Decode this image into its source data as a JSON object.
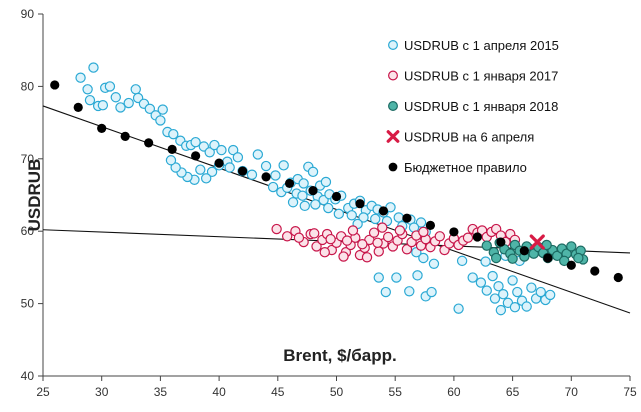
{
  "chart_data": {
    "type": "scatter",
    "xlabel": "Brent, $/барр.",
    "ylabel": "USDRUB",
    "xlim": [
      25,
      75
    ],
    "ylim": [
      40,
      90
    ],
    "x_ticks": [
      25,
      30,
      35,
      40,
      45,
      50,
      55,
      60,
      65,
      70,
      75
    ],
    "y_ticks": [
      40,
      50,
      60,
      70,
      80,
      90
    ],
    "grid": false,
    "legend_placement": "top-right",
    "series": [
      {
        "name": "USDRUB с 1 апреля 2015",
        "marker": "circle",
        "fill": "#ddf3fb",
        "stroke": "#2ba9d4",
        "points": [
          [
            28.2,
            81.2
          ],
          [
            28.8,
            79.6
          ],
          [
            29.3,
            82.6
          ],
          [
            29.0,
            78.1
          ],
          [
            29.7,
            77.3
          ],
          [
            30.3,
            79.8
          ],
          [
            30.7,
            80.0
          ],
          [
            30.1,
            77.4
          ],
          [
            31.2,
            78.5
          ],
          [
            31.6,
            77.1
          ],
          [
            32.3,
            77.7
          ],
          [
            32.9,
            79.6
          ],
          [
            33.1,
            78.4
          ],
          [
            33.6,
            77.6
          ],
          [
            34.1,
            76.9
          ],
          [
            34.6,
            76.0
          ],
          [
            35.0,
            75.3
          ],
          [
            35.2,
            76.8
          ],
          [
            35.6,
            73.7
          ],
          [
            36.1,
            73.4
          ],
          [
            36.7,
            72.5
          ],
          [
            37.2,
            71.8
          ],
          [
            37.6,
            71.9
          ],
          [
            38.0,
            72.3
          ],
          [
            38.7,
            71.7
          ],
          [
            39.2,
            70.9
          ],
          [
            39.6,
            71.9
          ],
          [
            40.2,
            71.2
          ],
          [
            40.7,
            69.6
          ],
          [
            41.2,
            71.2
          ],
          [
            41.6,
            70.2
          ],
          [
            40.0,
            69.1
          ],
          [
            39.4,
            68.2
          ],
          [
            38.9,
            67.3
          ],
          [
            38.4,
            68.5
          ],
          [
            37.9,
            67.1
          ],
          [
            37.3,
            67.5
          ],
          [
            36.8,
            68.1
          ],
          [
            36.3,
            68.8
          ],
          [
            35.9,
            69.8
          ],
          [
            40.9,
            68.8
          ],
          [
            42.0,
            68.3
          ],
          [
            42.8,
            67.8
          ],
          [
            43.3,
            70.6
          ],
          [
            44.0,
            69.0
          ],
          [
            44.8,
            67.7
          ],
          [
            45.5,
            69.1
          ],
          [
            46.1,
            66.7
          ],
          [
            46.7,
            67.2
          ],
          [
            47.2,
            66.6
          ],
          [
            47.6,
            68.9
          ],
          [
            48.0,
            68.2
          ],
          [
            48.6,
            66.3
          ],
          [
            49.1,
            66.8
          ],
          [
            44.6,
            66.1
          ],
          [
            45.3,
            65.4
          ],
          [
            45.8,
            66.0
          ],
          [
            46.6,
            65.2
          ],
          [
            47.1,
            64.9
          ],
          [
            47.8,
            65.6
          ],
          [
            48.4,
            64.8
          ],
          [
            48.9,
            64.3
          ],
          [
            49.4,
            65.1
          ],
          [
            49.9,
            64.4
          ],
          [
            50.4,
            64.9
          ],
          [
            51.0,
            63.2
          ],
          [
            51.5,
            63.8
          ],
          [
            52.0,
            64.2
          ],
          [
            52.5,
            62.9
          ],
          [
            53.0,
            63.5
          ],
          [
            53.5,
            63.0
          ],
          [
            54.0,
            62.6
          ],
          [
            54.6,
            63.3
          ],
          [
            46.3,
            64.0
          ],
          [
            47.3,
            63.5
          ],
          [
            48.2,
            63.7
          ],
          [
            49.3,
            63.2
          ],
          [
            50.2,
            62.4
          ],
          [
            51.3,
            62.2
          ],
          [
            52.3,
            61.9
          ],
          [
            53.3,
            61.7
          ],
          [
            54.3,
            61.4
          ],
          [
            55.3,
            61.9
          ],
          [
            56.3,
            61.6
          ],
          [
            57.2,
            61.2
          ],
          [
            55.6,
            60.7
          ],
          [
            56.6,
            60.5
          ],
          [
            57.6,
            59.9
          ],
          [
            51.8,
            61.0
          ],
          [
            53.6,
            53.6
          ],
          [
            54.2,
            51.6
          ],
          [
            55.1,
            53.6
          ],
          [
            56.2,
            51.7
          ],
          [
            56.9,
            53.9
          ],
          [
            57.6,
            51.0
          ],
          [
            58.1,
            51.6
          ],
          [
            58.3,
            55.5
          ],
          [
            57.4,
            56.3
          ],
          [
            56.8,
            57.1
          ],
          [
            60.4,
            49.3
          ],
          [
            60.7,
            55.9
          ],
          [
            61.6,
            53.6
          ],
          [
            62.3,
            52.9
          ],
          [
            62.8,
            51.8
          ],
          [
            63.3,
            53.8
          ],
          [
            63.8,
            52.4
          ],
          [
            64.2,
            51.3
          ],
          [
            64.6,
            50.1
          ],
          [
            65.0,
            53.2
          ],
          [
            65.4,
            51.6
          ],
          [
            65.8,
            50.4
          ],
          [
            66.2,
            49.6
          ],
          [
            66.6,
            52.2
          ],
          [
            67.0,
            50.7
          ],
          [
            67.4,
            51.6
          ],
          [
            67.8,
            50.5
          ],
          [
            68.2,
            51.2
          ],
          [
            64.0,
            49.1
          ],
          [
            65.2,
            49.5
          ],
          [
            63.5,
            50.7
          ],
          [
            62.7,
            55.8
          ],
          [
            64.4,
            56.6
          ],
          [
            65.6,
            55.9
          ]
        ]
      },
      {
        "name": "USDRUB с 1 января 2017",
        "marker": "circle",
        "fill": "#fbe3e9",
        "stroke": "#c8174b",
        "points": [
          [
            44.9,
            60.3
          ],
          [
            45.8,
            59.3
          ],
          [
            46.5,
            60.0
          ],
          [
            47.2,
            58.5
          ],
          [
            47.8,
            59.6
          ],
          [
            48.3,
            57.9
          ],
          [
            48.8,
            58.8
          ],
          [
            49.2,
            59.6
          ],
          [
            49.6,
            57.4
          ],
          [
            50.0,
            58.4
          ],
          [
            50.4,
            59.3
          ],
          [
            50.8,
            57.1
          ],
          [
            51.2,
            58.1
          ],
          [
            51.6,
            59.1
          ],
          [
            52.0,
            56.7
          ],
          [
            52.4,
            57.7
          ],
          [
            52.8,
            58.8
          ],
          [
            53.2,
            59.8
          ],
          [
            53.6,
            57.2
          ],
          [
            54.0,
            58.3
          ],
          [
            54.4,
            59.2
          ],
          [
            54.8,
            57.9
          ],
          [
            55.2,
            58.7
          ],
          [
            55.6,
            59.6
          ],
          [
            56.0,
            57.5
          ],
          [
            56.4,
            58.5
          ],
          [
            56.8,
            59.4
          ],
          [
            57.2,
            58.0
          ],
          [
            57.6,
            58.9
          ],
          [
            58.0,
            57.8
          ],
          [
            58.4,
            58.6
          ],
          [
            58.8,
            59.3
          ],
          [
            59.2,
            57.4
          ],
          [
            59.6,
            58.3
          ],
          [
            60.0,
            59.0
          ],
          [
            60.4,
            58.1
          ],
          [
            60.8,
            58.7
          ],
          [
            61.2,
            59.1
          ],
          [
            61.6,
            60.3
          ],
          [
            62.0,
            59.8
          ],
          [
            62.4,
            60.1
          ],
          [
            62.8,
            59.2
          ],
          [
            63.2,
            59.9
          ],
          [
            63.6,
            60.3
          ],
          [
            64.0,
            59.4
          ],
          [
            64.4,
            58.5
          ],
          [
            64.8,
            59.6
          ],
          [
            65.2,
            58.8
          ],
          [
            46.8,
            59.1
          ],
          [
            48.1,
            59.7
          ],
          [
            49.5,
            58.9
          ],
          [
            50.9,
            58.7
          ],
          [
            52.2,
            58.2
          ],
          [
            53.5,
            58.4
          ],
          [
            51.4,
            60.1
          ],
          [
            53.9,
            60.5
          ],
          [
            55.4,
            60.1
          ],
          [
            57.4,
            59.9
          ],
          [
            49.0,
            57.1
          ],
          [
            50.6,
            56.5
          ],
          [
            52.6,
            56.4
          ]
        ]
      },
      {
        "name": "USDRUB с 1 января 2018",
        "marker": "circle",
        "fill": "#4fb5a8",
        "stroke": "#1c6b63",
        "points": [
          [
            62.8,
            58.0
          ],
          [
            63.4,
            57.1
          ],
          [
            63.9,
            58.4
          ],
          [
            64.3,
            57.5
          ],
          [
            64.8,
            56.9
          ],
          [
            65.2,
            58.1
          ],
          [
            65.6,
            57.3
          ],
          [
            66.0,
            56.5
          ],
          [
            66.4,
            57.6
          ],
          [
            66.8,
            56.9
          ],
          [
            67.2,
            57.8
          ],
          [
            67.6,
            57.0
          ],
          [
            68.0,
            56.3
          ],
          [
            68.4,
            57.4
          ],
          [
            68.8,
            56.6
          ],
          [
            69.2,
            57.6
          ],
          [
            69.6,
            56.9
          ],
          [
            70.0,
            57.9
          ],
          [
            70.4,
            56.8
          ],
          [
            70.8,
            57.3
          ],
          [
            71.0,
            56.1
          ],
          [
            65.0,
            56.2
          ],
          [
            66.2,
            57.9
          ],
          [
            67.9,
            58.1
          ],
          [
            69.4,
            55.9
          ],
          [
            70.6,
            56.3
          ],
          [
            63.6,
            56.3
          ]
        ]
      },
      {
        "name": "USDRUB на 6 апреля",
        "marker": "x",
        "color": "#d81b45",
        "points": [
          [
            67.1,
            58.5
          ]
        ]
      },
      {
        "name": "Бюджетное правило",
        "marker": "dot",
        "color": "#000000",
        "points": [
          [
            26,
            80.2
          ],
          [
            28,
            77.1
          ],
          [
            30,
            74.2
          ],
          [
            32,
            73.1
          ],
          [
            34,
            72.2
          ],
          [
            36,
            71.3
          ],
          [
            38,
            70.4
          ],
          [
            40,
            69.4
          ],
          [
            42,
            68.3
          ],
          [
            44,
            67.5
          ],
          [
            46,
            66.6
          ],
          [
            48,
            65.6
          ],
          [
            50,
            64.8
          ],
          [
            52,
            63.8
          ],
          [
            54,
            62.8
          ],
          [
            56,
            61.8
          ],
          [
            58,
            60.8
          ],
          [
            60,
            59.9
          ],
          [
            62,
            59.2
          ],
          [
            64,
            58.5
          ],
          [
            66,
            57.3
          ],
          [
            68,
            56.3
          ],
          [
            70,
            55.3
          ],
          [
            72,
            54.5
          ],
          [
            74,
            53.6
          ]
        ]
      }
    ],
    "trendlines": [
      {
        "from": [
          25,
          77.3
        ],
        "to": [
          75,
          48.7
        ]
      },
      {
        "from": [
          25,
          60.2
        ],
        "to": [
          75,
          57.0
        ]
      }
    ]
  },
  "legend": {
    "items": [
      {
        "label": "USDRUB с 1 апреля 2015",
        "marker": "circle",
        "fill": "#ddf3fb",
        "stroke": "#2ba9d4"
      },
      {
        "label": "USDRUB с 1 января 2017",
        "marker": "circle",
        "fill": "#fbe3e9",
        "stroke": "#c8174b"
      },
      {
        "label": "USDRUB с 1 января 2018",
        "marker": "circle",
        "fill": "#4fb5a8",
        "stroke": "#1c6b63"
      },
      {
        "label": "USDRUB на 6 апреля",
        "marker": "x",
        "fill": "#d81b45",
        "stroke": "#d81b45"
      },
      {
        "label": "Бюджетное правило",
        "marker": "dot",
        "fill": "#000000",
        "stroke": "#000000"
      }
    ]
  }
}
